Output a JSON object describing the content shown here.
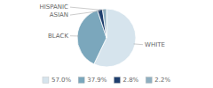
{
  "chart_data": {
    "type": "pie",
    "categories": [
      "WHITE",
      "BLACK",
      "ASIAN",
      "HISPANIC"
    ],
    "values": [
      57.0,
      37.9,
      2.8,
      2.2
    ],
    "value_labels": [
      "57.0%",
      "37.9%",
      "2.8%",
      "2.2%"
    ],
    "colors": [
      "#d6e4ed",
      "#7ba7bc",
      "#1f3f6e",
      "#8fafc0"
    ],
    "legend": "bottom"
  }
}
